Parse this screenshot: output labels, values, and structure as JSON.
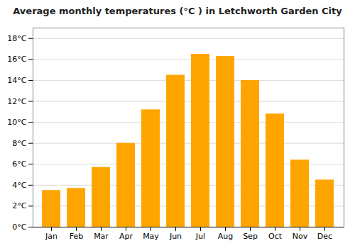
{
  "chart_data": {
    "type": "bar",
    "title": "Average monthly temperatures (°C ) in Letchworth Garden City",
    "categories": [
      "Jan",
      "Feb",
      "Mar",
      "Apr",
      "May",
      "Jun",
      "Jul",
      "Aug",
      "Sep",
      "Oct",
      "Nov",
      "Dec"
    ],
    "values": [
      3.5,
      3.7,
      5.7,
      8.0,
      11.2,
      14.5,
      16.5,
      16.3,
      14.0,
      10.8,
      6.4,
      4.5
    ],
    "color": "#FFA500",
    "ylim": [
      0,
      19
    ],
    "yticks": [
      {
        "value": 0,
        "label": "0°C"
      },
      {
        "value": 2,
        "label": "2°C"
      },
      {
        "value": 4,
        "label": "4°C"
      },
      {
        "value": 6,
        "label": "6°C"
      },
      {
        "value": 8,
        "label": "8°C"
      },
      {
        "value": 10,
        "label": "10°C"
      },
      {
        "value": 12,
        "label": "12°C"
      },
      {
        "value": 14,
        "label": "14°C"
      },
      {
        "value": 16,
        "label": "16°C"
      },
      {
        "value": 18,
        "label": "18°C"
      }
    ],
    "grid": true
  }
}
